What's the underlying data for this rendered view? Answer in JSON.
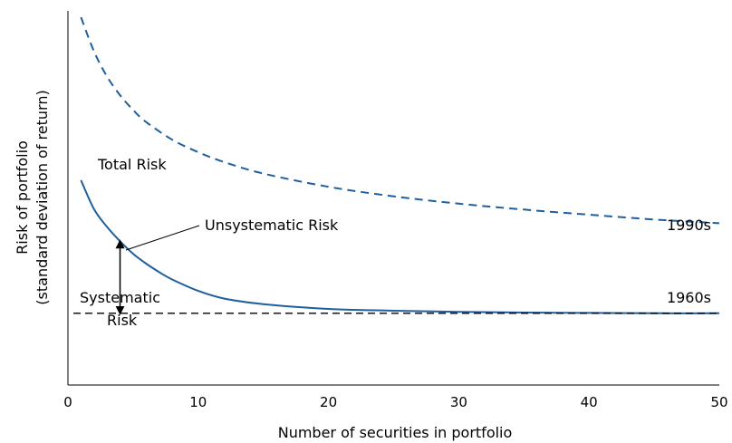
{
  "chart_data": {
    "type": "line",
    "title": "",
    "xlabel": "Number of securities in portfolio",
    "ylabel": [
      "Risk of portfolio",
      "(standard deviation of return)"
    ],
    "xlim": [
      0,
      50
    ],
    "ylim": [
      0,
      1
    ],
    "x_ticks": [
      0,
      10,
      20,
      30,
      40,
      50
    ],
    "grid": false,
    "legend": "none",
    "series": [
      {
        "name": "1990s",
        "style": "dashed",
        "color": "#1f5f9e",
        "x": [
          1,
          2,
          3,
          4,
          5,
          6,
          8,
          10,
          12,
          15,
          20,
          25,
          30,
          35,
          40,
          45,
          50
        ],
        "y": [
          1.0,
          0.907,
          0.839,
          0.788,
          0.748,
          0.715,
          0.667,
          0.633,
          0.606,
          0.575,
          0.539,
          0.513,
          0.493,
          0.477,
          0.463,
          0.45,
          0.44
        ]
      },
      {
        "name": "1960s",
        "style": "solid",
        "color": "#1f5f9e",
        "x": [
          1,
          2,
          3,
          4,
          5,
          6,
          7,
          8,
          10,
          12,
          15,
          20,
          25,
          30,
          35,
          40,
          45,
          50
        ],
        "y": [
          0.557,
          0.478,
          0.43,
          0.391,
          0.357,
          0.33,
          0.307,
          0.287,
          0.256,
          0.235,
          0.22,
          0.207,
          0.202,
          0.199,
          0.197,
          0.196,
          0.195,
          0.195
        ]
      }
    ],
    "reference_line": {
      "label": "Systematic Risk",
      "y": 0.195,
      "style": "dashed",
      "color": "#000000"
    },
    "annotations": {
      "total_risk": "Total Risk",
      "unsystematic_risk": "Unsystematic Risk",
      "systematic_risk_line1": "Systematic",
      "systematic_risk_line2": "Risk"
    },
    "double_arrow": {
      "x": 4,
      "y_from": 0.195,
      "y_to": 0.391
    }
  }
}
